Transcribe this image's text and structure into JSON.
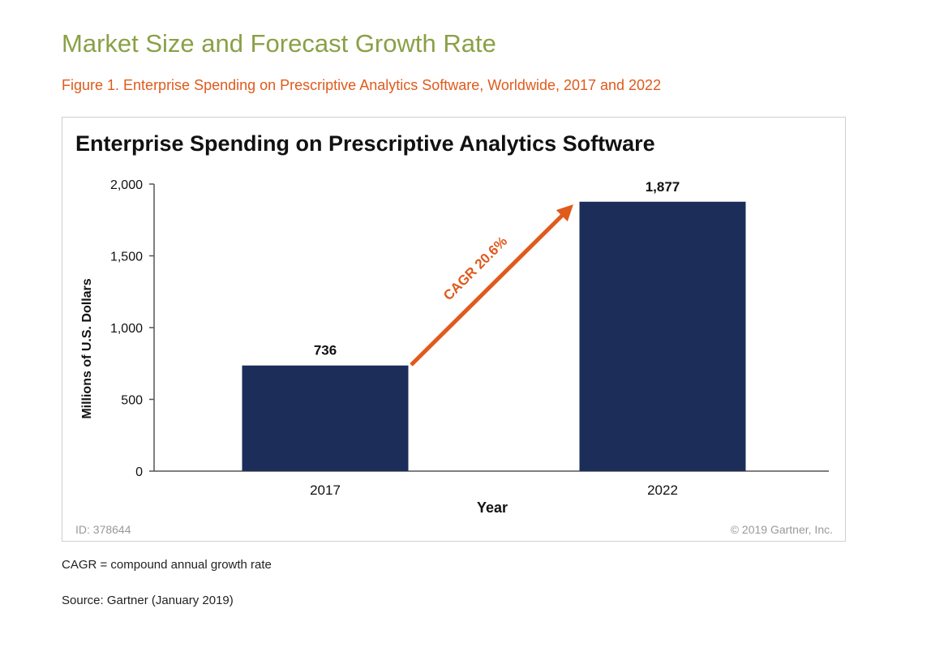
{
  "page": {
    "title": "Market Size and Forecast Growth Rate",
    "figure_caption": "Figure 1. Enterprise Spending on Prescriptive Analytics Software, Worldwide, 2017 and 2022",
    "footnote_cagr": "CAGR = compound annual growth rate",
    "footnote_source": "Source: Gartner (January 2019)"
  },
  "chart_data": {
    "type": "bar",
    "title": "Enterprise Spending on Prescriptive Analytics Software",
    "categories": [
      "2017",
      "2022"
    ],
    "values": [
      736,
      1877
    ],
    "data_labels": [
      "736",
      "1,877"
    ],
    "xlabel": "Year",
    "ylabel": "Millions of U.S. Dollars",
    "ylim": [
      0,
      2000
    ],
    "yticks": [
      0,
      500,
      1000,
      1500,
      2000
    ],
    "ytick_labels": [
      "0",
      "500",
      "1,000",
      "1,500",
      "2,000"
    ],
    "grid": false,
    "annotation": "CAGR 20.6%",
    "id_text": "ID: 378644",
    "copyright": "© 2019 Gartner, Inc.",
    "colors": {
      "bar": "#1c2d5a",
      "arrow": "#e05a1c",
      "axis": "#555555",
      "title": "#111111",
      "meta": "#999999"
    }
  }
}
